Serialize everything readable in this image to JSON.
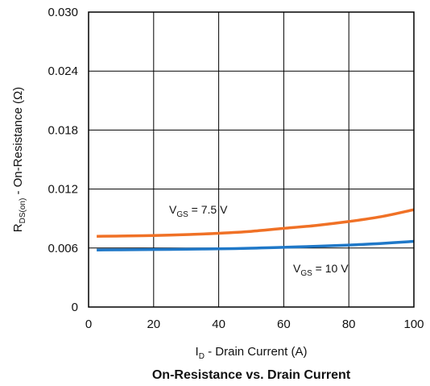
{
  "chart_data": {
    "type": "line",
    "title": "On-Resistance vs. Drain Current",
    "xlabel": {
      "main": "I",
      "sub": "D",
      "rest": " - Drain Current (A)"
    },
    "ylabel": {
      "main": "R",
      "sub": "DS(on)",
      "rest": " - On-Resistance (Ω)"
    },
    "xlim": [
      0,
      100
    ],
    "ylim": [
      0,
      0.03
    ],
    "xticks": [
      "0",
      "20",
      "40",
      "60",
      "80",
      "100"
    ],
    "xtick_values": [
      0,
      20,
      40,
      60,
      80,
      100
    ],
    "yticks": [
      "0",
      "0.006",
      "0.012",
      "0.018",
      "0.024",
      "0.030"
    ],
    "ytick_values": [
      0,
      0.006,
      0.012,
      0.018,
      0.024,
      0.03
    ],
    "grid": true,
    "legend": "none (inline annotations)",
    "series": [
      {
        "name": "VGS = 7.5 V",
        "label": {
          "main": "V",
          "sub": "GS",
          "rest": " = 7.5 V"
        },
        "color": "#f07126",
        "x": [
          2.5,
          10,
          20,
          30,
          40,
          50,
          60,
          70,
          80,
          90,
          100
        ],
        "y": [
          0.0072,
          0.00722,
          0.00728,
          0.00737,
          0.0075,
          0.0077,
          0.008,
          0.0083,
          0.0087,
          0.0092,
          0.0099
        ]
      },
      {
        "name": "VGS = 10 V",
        "label": {
          "main": "V",
          "sub": "GS",
          "rest": " = 10 V"
        },
        "color": "#1f78c8",
        "x": [
          2.5,
          10,
          20,
          30,
          40,
          50,
          60,
          70,
          80,
          90,
          100
        ],
        "y": [
          0.0058,
          0.00582,
          0.00585,
          0.00588,
          0.00592,
          0.00598,
          0.00607,
          0.00618,
          0.0063,
          0.00647,
          0.00668
        ]
      }
    ]
  }
}
